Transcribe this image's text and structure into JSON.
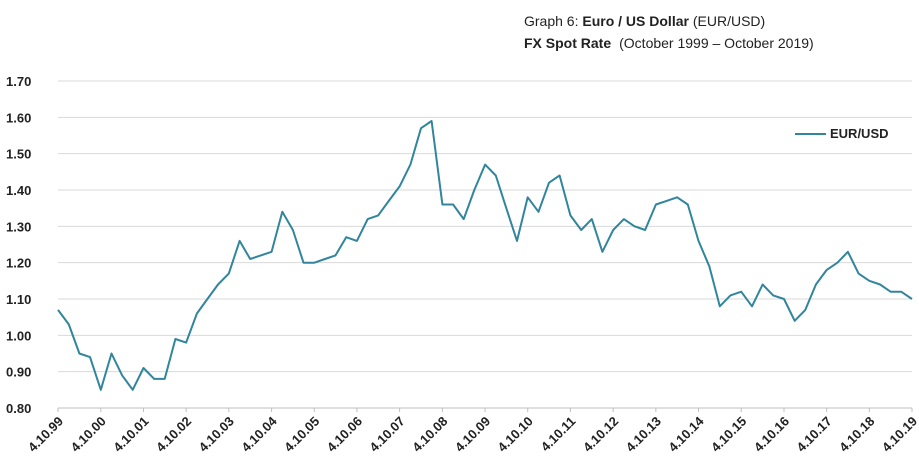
{
  "chart_data": {
    "type": "line",
    "title": [
      "Graph 6:",
      "Euro / US Dollar",
      "(EUR/USD)"
    ],
    "subtitle": [
      "FX Spot Rate",
      "(October 1999 – October 2019)"
    ],
    "x": [
      "1999-10-04",
      "2000-01-04",
      "2000-04-04",
      "2000-07-04",
      "2000-10-04",
      "2001-01-04",
      "2001-04-04",
      "2001-07-04",
      "2001-10-04",
      "2002-01-04",
      "2002-04-04",
      "2002-07-04",
      "2002-10-04",
      "2003-01-04",
      "2003-04-04",
      "2003-07-04",
      "2003-10-04",
      "2004-01-04",
      "2004-04-04",
      "2004-07-04",
      "2004-10-04",
      "2005-01-04",
      "2005-04-04",
      "2005-07-04",
      "2005-10-04",
      "2006-01-04",
      "2006-04-04",
      "2006-07-04",
      "2006-10-04",
      "2007-01-04",
      "2007-04-04",
      "2007-07-04",
      "2007-10-04",
      "2008-01-04",
      "2008-04-04",
      "2008-07-04",
      "2008-10-04",
      "2009-01-04",
      "2009-04-04",
      "2009-07-04",
      "2009-10-04",
      "2010-01-04",
      "2010-04-04",
      "2010-07-04",
      "2010-10-04",
      "2011-01-04",
      "2011-04-04",
      "2011-07-04",
      "2011-10-04",
      "2012-01-04",
      "2012-04-04",
      "2012-07-04",
      "2012-10-04",
      "2013-01-04",
      "2013-04-04",
      "2013-07-04",
      "2013-10-04",
      "2014-01-04",
      "2014-04-04",
      "2014-07-04",
      "2014-10-04",
      "2015-01-04",
      "2015-04-04",
      "2015-07-04",
      "2015-10-04",
      "2016-01-04",
      "2016-04-04",
      "2016-07-04",
      "2016-10-04",
      "2017-01-04",
      "2017-04-04",
      "2017-07-04",
      "2017-10-04",
      "2018-01-04",
      "2018-04-04",
      "2018-07-04",
      "2018-10-04",
      "2019-01-04",
      "2019-04-04",
      "2019-07-04",
      "2019-10-04"
    ],
    "series": [
      {
        "name": "EUR/USD",
        "color": "#31859c",
        "values": [
          1.07,
          1.03,
          0.95,
          0.94,
          0.85,
          0.95,
          0.89,
          0.85,
          0.91,
          0.88,
          0.88,
          0.99,
          0.98,
          1.06,
          1.1,
          1.14,
          1.17,
          1.26,
          1.21,
          1.22,
          1.23,
          1.34,
          1.29,
          1.2,
          1.2,
          1.21,
          1.22,
          1.27,
          1.26,
          1.32,
          1.33,
          1.37,
          1.41,
          1.47,
          1.57,
          1.59,
          1.36,
          1.36,
          1.32,
          1.4,
          1.47,
          1.44,
          1.35,
          1.26,
          1.38,
          1.34,
          1.42,
          1.44,
          1.33,
          1.29,
          1.32,
          1.23,
          1.29,
          1.32,
          1.3,
          1.29,
          1.36,
          1.37,
          1.38,
          1.36,
          1.26,
          1.19,
          1.08,
          1.11,
          1.12,
          1.08,
          1.14,
          1.11,
          1.1,
          1.04,
          1.07,
          1.14,
          1.18,
          1.2,
          1.23,
          1.17,
          1.15,
          1.14,
          1.12,
          1.12,
          1.1
        ]
      }
    ],
    "xlim": [
      "1999-10-04",
      "2019-10-04"
    ],
    "xticks": [
      {
        "value": "1999-10-04",
        "label": "4.10.99"
      },
      {
        "value": "2000-10-04",
        "label": "4.10.00"
      },
      {
        "value": "2001-10-04",
        "label": "4.10.01"
      },
      {
        "value": "2002-10-04",
        "label": "4.10.02"
      },
      {
        "value": "2003-10-04",
        "label": "4.10.03"
      },
      {
        "value": "2004-10-04",
        "label": "4.10.04"
      },
      {
        "value": "2005-10-04",
        "label": "4.10.05"
      },
      {
        "value": "2006-10-04",
        "label": "4.10.06"
      },
      {
        "value": "2007-10-04",
        "label": "4.10.07"
      },
      {
        "value": "2008-10-04",
        "label": "4.10.08"
      },
      {
        "value": "2009-10-04",
        "label": "4.10.09"
      },
      {
        "value": "2010-10-04",
        "label": "4.10.10"
      },
      {
        "value": "2011-10-04",
        "label": "4.10.11"
      },
      {
        "value": "2012-10-04",
        "label": "4.10.12"
      },
      {
        "value": "2013-10-04",
        "label": "4.10.13"
      },
      {
        "value": "2014-10-04",
        "label": "4.10.14"
      },
      {
        "value": "2015-10-04",
        "label": "4.10.15"
      },
      {
        "value": "2016-10-04",
        "label": "4.10.16"
      },
      {
        "value": "2017-10-04",
        "label": "4.10.17"
      },
      {
        "value": "2018-10-04",
        "label": "4.10.18"
      },
      {
        "value": "2019-10-04",
        "label": "4.10.19"
      }
    ],
    "ylim": [
      0.8,
      1.7
    ],
    "yticks": [
      {
        "value": 0.8,
        "label": "0.80"
      },
      {
        "value": 0.9,
        "label": "0.90"
      },
      {
        "value": 1.0,
        "label": "1.00"
      },
      {
        "value": 1.1,
        "label": "1.10"
      },
      {
        "value": 1.2,
        "label": "1.20"
      },
      {
        "value": 1.3,
        "label": "1.30"
      },
      {
        "value": 1.4,
        "label": "1.40"
      },
      {
        "value": 1.5,
        "label": "1.50"
      },
      {
        "value": 1.6,
        "label": "1.60"
      },
      {
        "value": 1.7,
        "label": "1.70"
      }
    ],
    "grid": true,
    "legend": "upper right"
  }
}
